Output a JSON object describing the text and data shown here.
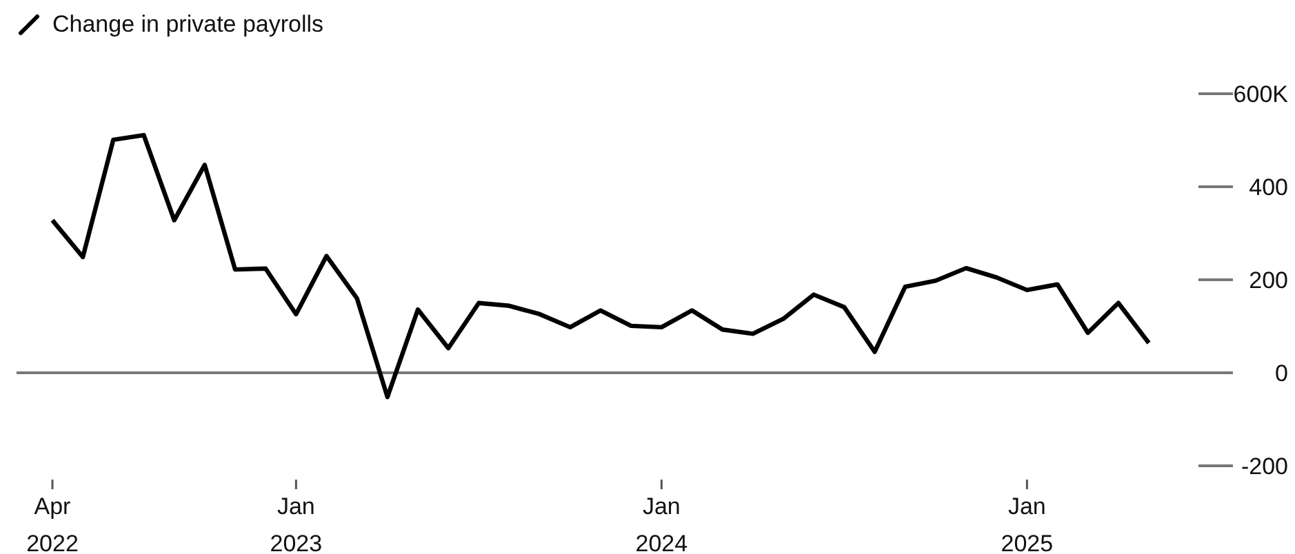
{
  "chart_data": {
    "type": "line",
    "categories": [
      "Apr 2022",
      null,
      null,
      null,
      null,
      null,
      null,
      null,
      "Jan 2023",
      null,
      null,
      null,
      null,
      null,
      null,
      null,
      null,
      null,
      null,
      null,
      "Jan 2024",
      null,
      null,
      null,
      null,
      null,
      null,
      null,
      null,
      null,
      null,
      null,
      "Jan 2025",
      null,
      null,
      null,
      null
    ],
    "series": [
      {
        "name": "Change in private payrolls",
        "color": "#000000",
        "values": [
          328,
          249,
          501,
          511,
          328,
          447,
          222,
          224,
          126,
          251,
          160,
          -52,
          136,
          53,
          150,
          144,
          126,
          98,
          134,
          101,
          98,
          134,
          93,
          84,
          116,
          168,
          141,
          45,
          185,
          198,
          225,
          205,
          178,
          190,
          86,
          150,
          64
        ]
      }
    ],
    "ylim": [
      -200,
      600
    ],
    "yticks": [
      {
        "value": 600,
        "label": "600K"
      },
      400,
      200,
      0,
      -200
    ],
    "ref_lines": [
      {
        "axis": "y",
        "value": 0
      }
    ],
    "legend": "top left",
    "marker": "none"
  }
}
